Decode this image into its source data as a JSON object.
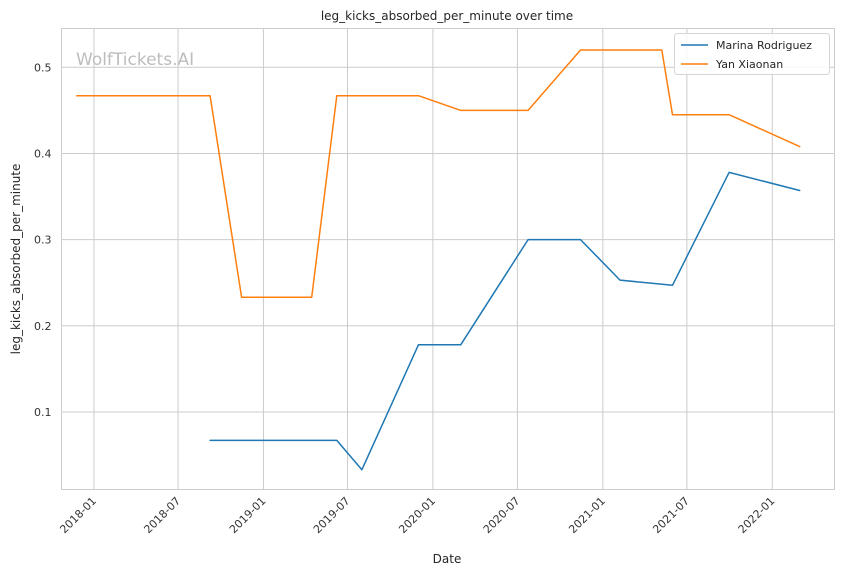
{
  "chart_data": {
    "type": "line",
    "title": "leg_kicks_absorbed_per_minute over time",
    "xlabel": "Date",
    "ylabel": "leg_kicks_absorbed_per_minute",
    "watermark": "WolfTickets.AI",
    "grid": true,
    "legend_position": "top-right",
    "x_ticks": [
      "2018-01",
      "2018-07",
      "2019-01",
      "2019-07",
      "2020-01",
      "2020-07",
      "2021-01",
      "2021-07",
      "2022-01"
    ],
    "y_ticks": [
      0.1,
      0.2,
      0.3,
      0.4,
      0.5
    ],
    "xlim": [
      "2017-10-23",
      "2022-05-15"
    ],
    "ylim": [
      0.01,
      0.545
    ],
    "series": [
      {
        "name": "Marina Rodriguez",
        "color": "#1f77b4",
        "points": [
          {
            "x": "2018-09-08",
            "y": 0.067
          },
          {
            "x": "2019-06-08",
            "y": 0.067
          },
          {
            "x": "2019-08-01",
            "y": 0.033
          },
          {
            "x": "2019-12-01",
            "y": 0.178
          },
          {
            "x": "2020-03-01",
            "y": 0.178
          },
          {
            "x": "2020-07-24",
            "y": 0.3
          },
          {
            "x": "2020-11-14",
            "y": 0.3
          },
          {
            "x": "2021-02-07",
            "y": 0.253
          },
          {
            "x": "2021-05-31",
            "y": 0.247
          },
          {
            "x": "2021-09-30",
            "y": 0.378
          },
          {
            "x": "2022-03-01",
            "y": 0.357
          }
        ]
      },
      {
        "name": "Yan Xiaonan",
        "color": "#ff7f0e",
        "points": [
          {
            "x": "2017-11-25",
            "y": 0.467
          },
          {
            "x": "2018-09-08",
            "y": 0.467
          },
          {
            "x": "2018-11-15",
            "y": 0.233
          },
          {
            "x": "2019-04-15",
            "y": 0.233
          },
          {
            "x": "2019-06-08",
            "y": 0.467
          },
          {
            "x": "2019-12-01",
            "y": 0.467
          },
          {
            "x": "2020-03-01",
            "y": 0.45
          },
          {
            "x": "2020-07-24",
            "y": 0.45
          },
          {
            "x": "2020-11-14",
            "y": 0.52
          },
          {
            "x": "2021-05-08",
            "y": 0.52
          },
          {
            "x": "2021-05-31",
            "y": 0.445
          },
          {
            "x": "2021-09-30",
            "y": 0.445
          },
          {
            "x": "2022-03-01",
            "y": 0.408
          }
        ]
      }
    ]
  }
}
